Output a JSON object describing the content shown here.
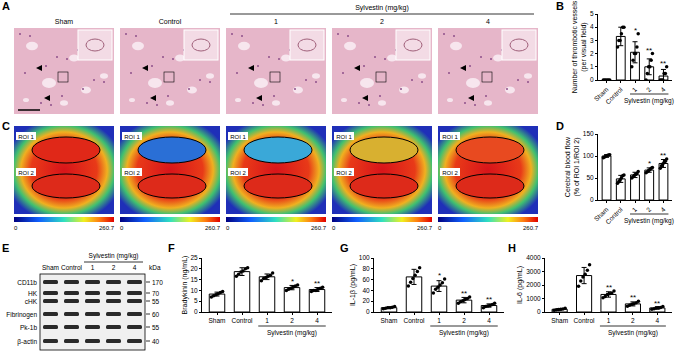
{
  "chart_data": [
    {
      "panel": "B",
      "type": "bar",
      "y_label": [
        "Number of thrombotic vessels",
        "(per visual field)"
      ],
      "categories": [
        "Sham",
        "Control",
        "1",
        "2",
        "4"
      ],
      "group_label": "Sylvestin (mg/kg)",
      "values": [
        0,
        3.3,
        2.1,
        1.0,
        0.3
      ],
      "errors": [
        0,
        0.7,
        0.8,
        0.6,
        0.5
      ],
      "points": [
        [
          0,
          0,
          0,
          0,
          0,
          0
        ],
        [
          2.5,
          3,
          3,
          3.5,
          4,
          4
        ],
        [
          1,
          1.5,
          2,
          2,
          2.5,
          3.5
        ],
        [
          0,
          0.5,
          1,
          1,
          1.5,
          2
        ],
        [
          0,
          0,
          0,
          0.5,
          0.5,
          1
        ]
      ],
      "significance": [
        null,
        null,
        "*",
        "**",
        "**"
      ],
      "ylim": [
        0,
        5
      ],
      "yticks": [
        0,
        1,
        2,
        3,
        4,
        5
      ],
      "color": "#ffffff",
      "marker": "circle"
    },
    {
      "panel": "D",
      "type": "bar",
      "y_label": [
        "Cerebral blood flow",
        "(% of ROI 1/ROI 2)"
      ],
      "categories": [
        "Sham",
        "Control",
        "1",
        "2",
        "4"
      ],
      "group_label": "Sylvestin (mg/kg)",
      "values": [
        100,
        48,
        57,
        68,
        83
      ],
      "errors": [
        3,
        8,
        6,
        5,
        9
      ],
      "points": [
        [
          96,
          98,
          100,
          101,
          102,
          103
        ],
        [
          38,
          42,
          46,
          50,
          55,
          57
        ],
        [
          50,
          53,
          56,
          58,
          60,
          65
        ],
        [
          62,
          64,
          67,
          69,
          72,
          74
        ],
        [
          72,
          78,
          82,
          85,
          88,
          93
        ]
      ],
      "significance": [
        null,
        null,
        null,
        "*",
        "**"
      ],
      "ylim": [
        0,
        150
      ],
      "yticks": [
        0,
        50,
        100,
        150
      ],
      "color": "#ffffff",
      "marker": "circle"
    },
    {
      "panel": "F",
      "type": "bar",
      "y_label": [
        "Bradykinin (ng/mL)"
      ],
      "categories": [
        "Sham",
        "Control",
        "1",
        "2",
        "4"
      ],
      "group_label": "Sylvestin (mg/kg)",
      "values": [
        8.3,
        18.7,
        16.3,
        11.3,
        10.4
      ],
      "errors": [
        0.9,
        1.8,
        1.3,
        1.0,
        0.9
      ],
      "points": [
        [
          7,
          7.5,
          8,
          8.5,
          9,
          9.5
        ],
        [
          16.5,
          17.5,
          18.5,
          19,
          20,
          20.5
        ],
        [
          14.5,
          15.5,
          16,
          16.5,
          17,
          18
        ],
        [
          10,
          10.5,
          11,
          11.5,
          12,
          12.5
        ],
        [
          9.5,
          10,
          10,
          10.5,
          11,
          11.5
        ]
      ],
      "significance": [
        null,
        null,
        null,
        "*",
        "**"
      ],
      "ylim": [
        0,
        25
      ],
      "yticks": [
        0,
        5,
        10,
        15,
        20,
        25
      ],
      "color": "#ffffff",
      "marker": "circle"
    },
    {
      "panel": "G",
      "type": "bar",
      "y_label": [
        "IL-1β (pg/mL)"
      ],
      "categories": [
        "Sham",
        "Control",
        "1",
        "2",
        "4"
      ],
      "group_label": "Sylvestin (mg/kg)",
      "values": [
        8,
        65,
        48,
        22,
        12
      ],
      "errors": [
        1.5,
        14,
        10,
        5,
        3
      ],
      "points": [
        [
          6,
          7,
          8,
          8,
          9,
          10
        ],
        [
          48,
          55,
          62,
          68,
          75,
          82
        ],
        [
          35,
          42,
          46,
          50,
          54,
          61
        ],
        [
          16,
          19,
          21,
          23,
          25,
          28
        ],
        [
          8,
          10,
          11,
          12,
          14,
          16
        ]
      ],
      "significance": [
        null,
        null,
        "*",
        "**",
        "**"
      ],
      "ylim": [
        0,
        100
      ],
      "yticks": [
        0,
        20,
        40,
        60,
        80,
        100
      ],
      "color": "#ffffff",
      "marker": "circle"
    },
    {
      "panel": "H",
      "type": "bar",
      "y_label": [
        "IL-6 (pg/mL)"
      ],
      "categories": [
        "Sham",
        "Control",
        "1",
        "2",
        "4"
      ],
      "group_label": "Sylvestin (mg/kg)",
      "values": [
        200,
        2700,
        1300,
        600,
        300
      ],
      "errors": [
        60,
        600,
        200,
        150,
        90
      ],
      "points": [
        [
          130,
          160,
          190,
          210,
          230,
          280
        ],
        [
          1900,
          2300,
          2600,
          2800,
          3100,
          3500
        ],
        [
          1050,
          1150,
          1300,
          1350,
          1400,
          1550
        ],
        [
          420,
          500,
          580,
          620,
          680,
          800
        ],
        [
          200,
          250,
          290,
          320,
          340,
          400
        ]
      ],
      "significance": [
        null,
        null,
        "**",
        "**",
        "**"
      ],
      "ylim": [
        0,
        4000
      ],
      "yticks": [
        0,
        1000,
        2000,
        3000,
        4000
      ],
      "color": "#ffffff",
      "marker": "circle"
    }
  ],
  "images": {
    "A": {
      "panel": "A",
      "columns": [
        "Sham",
        "Control",
        "1",
        "2",
        "4"
      ],
      "group_label": "Sylvestin (mg/kg)"
    },
    "C": {
      "panel": "C",
      "roi_labels": [
        "ROI 1",
        "ROI 2"
      ],
      "scale_labels": [
        "0",
        "260.7"
      ]
    },
    "E": {
      "panel": "E",
      "columns": [
        "Sham",
        "Control",
        "1",
        "2",
        "4"
      ],
      "group_label": "Sylvestin (mg/kg)",
      "unit": "kDa",
      "bands": [
        {
          "name": "CD11b",
          "kda": 170
        },
        {
          "name": "HK",
          "kda": 70
        },
        {
          "name": "cHK",
          "kda": 55
        },
        {
          "name": "Fibrinogen",
          "kda": 60
        },
        {
          "name": "Pk-1b",
          "kda": 55
        },
        {
          "name": "β-actin",
          "kda": 40
        }
      ]
    }
  }
}
